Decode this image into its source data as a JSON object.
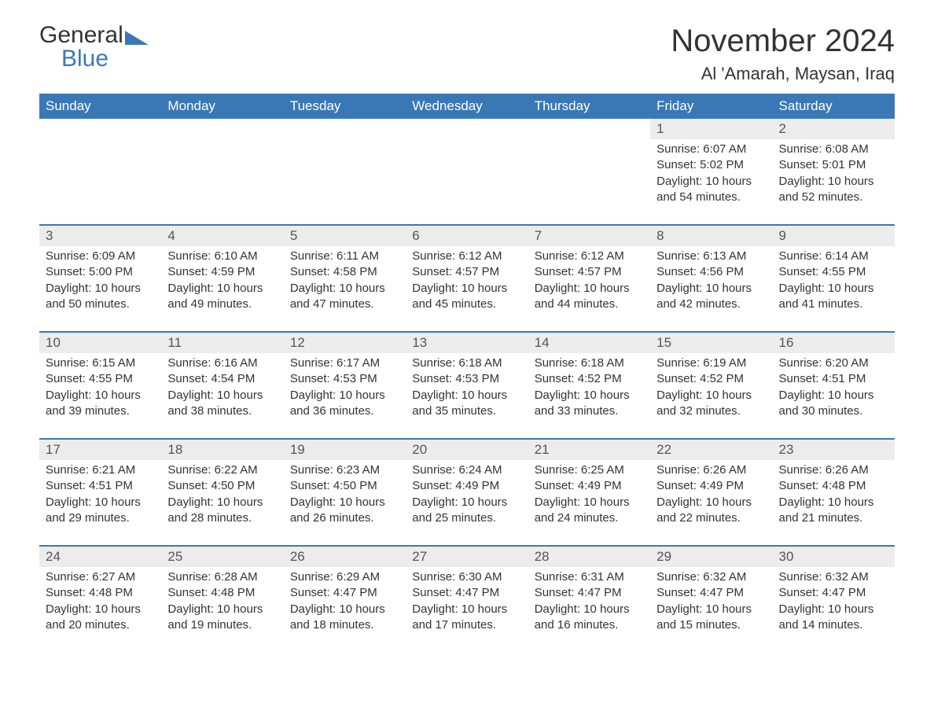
{
  "logo": {
    "word1": "General",
    "word2": "Blue"
  },
  "title": "November 2024",
  "location": "Al 'Amarah, Maysan, Iraq",
  "colors": {
    "brand": "#3a78b5",
    "row_header_bg": "#ececec",
    "text": "#333333",
    "background": "#ffffff"
  },
  "typography": {
    "title_fontsize": 40,
    "location_fontsize": 22,
    "header_fontsize": 17,
    "daynum_fontsize": 17,
    "detail_fontsize": 15,
    "font_family": "Arial"
  },
  "weekdays": [
    "Sunday",
    "Monday",
    "Tuesday",
    "Wednesday",
    "Thursday",
    "Friday",
    "Saturday"
  ],
  "weeks": [
    [
      null,
      null,
      null,
      null,
      null,
      {
        "d": "1",
        "sr": "Sunrise: 6:07 AM",
        "ss": "Sunset: 5:02 PM",
        "dl1": "Daylight: 10 hours",
        "dl2": "and 54 minutes."
      },
      {
        "d": "2",
        "sr": "Sunrise: 6:08 AM",
        "ss": "Sunset: 5:01 PM",
        "dl1": "Daylight: 10 hours",
        "dl2": "and 52 minutes."
      }
    ],
    [
      {
        "d": "3",
        "sr": "Sunrise: 6:09 AM",
        "ss": "Sunset: 5:00 PM",
        "dl1": "Daylight: 10 hours",
        "dl2": "and 50 minutes."
      },
      {
        "d": "4",
        "sr": "Sunrise: 6:10 AM",
        "ss": "Sunset: 4:59 PM",
        "dl1": "Daylight: 10 hours",
        "dl2": "and 49 minutes."
      },
      {
        "d": "5",
        "sr": "Sunrise: 6:11 AM",
        "ss": "Sunset: 4:58 PM",
        "dl1": "Daylight: 10 hours",
        "dl2": "and 47 minutes."
      },
      {
        "d": "6",
        "sr": "Sunrise: 6:12 AM",
        "ss": "Sunset: 4:57 PM",
        "dl1": "Daylight: 10 hours",
        "dl2": "and 45 minutes."
      },
      {
        "d": "7",
        "sr": "Sunrise: 6:12 AM",
        "ss": "Sunset: 4:57 PM",
        "dl1": "Daylight: 10 hours",
        "dl2": "and 44 minutes."
      },
      {
        "d": "8",
        "sr": "Sunrise: 6:13 AM",
        "ss": "Sunset: 4:56 PM",
        "dl1": "Daylight: 10 hours",
        "dl2": "and 42 minutes."
      },
      {
        "d": "9",
        "sr": "Sunrise: 6:14 AM",
        "ss": "Sunset: 4:55 PM",
        "dl1": "Daylight: 10 hours",
        "dl2": "and 41 minutes."
      }
    ],
    [
      {
        "d": "10",
        "sr": "Sunrise: 6:15 AM",
        "ss": "Sunset: 4:55 PM",
        "dl1": "Daylight: 10 hours",
        "dl2": "and 39 minutes."
      },
      {
        "d": "11",
        "sr": "Sunrise: 6:16 AM",
        "ss": "Sunset: 4:54 PM",
        "dl1": "Daylight: 10 hours",
        "dl2": "and 38 minutes."
      },
      {
        "d": "12",
        "sr": "Sunrise: 6:17 AM",
        "ss": "Sunset: 4:53 PM",
        "dl1": "Daylight: 10 hours",
        "dl2": "and 36 minutes."
      },
      {
        "d": "13",
        "sr": "Sunrise: 6:18 AM",
        "ss": "Sunset: 4:53 PM",
        "dl1": "Daylight: 10 hours",
        "dl2": "and 35 minutes."
      },
      {
        "d": "14",
        "sr": "Sunrise: 6:18 AM",
        "ss": "Sunset: 4:52 PM",
        "dl1": "Daylight: 10 hours",
        "dl2": "and 33 minutes."
      },
      {
        "d": "15",
        "sr": "Sunrise: 6:19 AM",
        "ss": "Sunset: 4:52 PM",
        "dl1": "Daylight: 10 hours",
        "dl2": "and 32 minutes."
      },
      {
        "d": "16",
        "sr": "Sunrise: 6:20 AM",
        "ss": "Sunset: 4:51 PM",
        "dl1": "Daylight: 10 hours",
        "dl2": "and 30 minutes."
      }
    ],
    [
      {
        "d": "17",
        "sr": "Sunrise: 6:21 AM",
        "ss": "Sunset: 4:51 PM",
        "dl1": "Daylight: 10 hours",
        "dl2": "and 29 minutes."
      },
      {
        "d": "18",
        "sr": "Sunrise: 6:22 AM",
        "ss": "Sunset: 4:50 PM",
        "dl1": "Daylight: 10 hours",
        "dl2": "and 28 minutes."
      },
      {
        "d": "19",
        "sr": "Sunrise: 6:23 AM",
        "ss": "Sunset: 4:50 PM",
        "dl1": "Daylight: 10 hours",
        "dl2": "and 26 minutes."
      },
      {
        "d": "20",
        "sr": "Sunrise: 6:24 AM",
        "ss": "Sunset: 4:49 PM",
        "dl1": "Daylight: 10 hours",
        "dl2": "and 25 minutes."
      },
      {
        "d": "21",
        "sr": "Sunrise: 6:25 AM",
        "ss": "Sunset: 4:49 PM",
        "dl1": "Daylight: 10 hours",
        "dl2": "and 24 minutes."
      },
      {
        "d": "22",
        "sr": "Sunrise: 6:26 AM",
        "ss": "Sunset: 4:49 PM",
        "dl1": "Daylight: 10 hours",
        "dl2": "and 22 minutes."
      },
      {
        "d": "23",
        "sr": "Sunrise: 6:26 AM",
        "ss": "Sunset: 4:48 PM",
        "dl1": "Daylight: 10 hours",
        "dl2": "and 21 minutes."
      }
    ],
    [
      {
        "d": "24",
        "sr": "Sunrise: 6:27 AM",
        "ss": "Sunset: 4:48 PM",
        "dl1": "Daylight: 10 hours",
        "dl2": "and 20 minutes."
      },
      {
        "d": "25",
        "sr": "Sunrise: 6:28 AM",
        "ss": "Sunset: 4:48 PM",
        "dl1": "Daylight: 10 hours",
        "dl2": "and 19 minutes."
      },
      {
        "d": "26",
        "sr": "Sunrise: 6:29 AM",
        "ss": "Sunset: 4:47 PM",
        "dl1": "Daylight: 10 hours",
        "dl2": "and 18 minutes."
      },
      {
        "d": "27",
        "sr": "Sunrise: 6:30 AM",
        "ss": "Sunset: 4:47 PM",
        "dl1": "Daylight: 10 hours",
        "dl2": "and 17 minutes."
      },
      {
        "d": "28",
        "sr": "Sunrise: 6:31 AM",
        "ss": "Sunset: 4:47 PM",
        "dl1": "Daylight: 10 hours",
        "dl2": "and 16 minutes."
      },
      {
        "d": "29",
        "sr": "Sunrise: 6:32 AM",
        "ss": "Sunset: 4:47 PM",
        "dl1": "Daylight: 10 hours",
        "dl2": "and 15 minutes."
      },
      {
        "d": "30",
        "sr": "Sunrise: 6:32 AM",
        "ss": "Sunset: 4:47 PM",
        "dl1": "Daylight: 10 hours",
        "dl2": "and 14 minutes."
      }
    ]
  ]
}
